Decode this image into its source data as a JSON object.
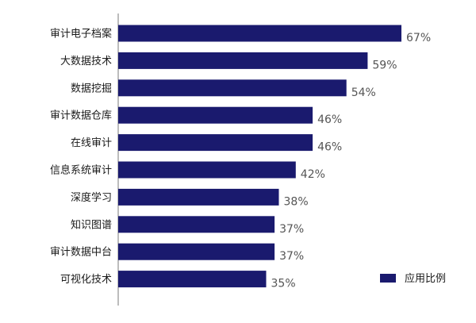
{
  "chart_data": {
    "type": "bar",
    "orientation": "horizontal",
    "categories": [
      "审计电子档案",
      "大数据技术",
      "数据挖掘",
      "审计数据仓库",
      "在线审计",
      "信息系统审计",
      "深度学习",
      "知识图谱",
      "审计数据中台",
      "可视化技术"
    ],
    "series": [
      {
        "name": "应用比例",
        "values": [
          67,
          59,
          54,
          46,
          46,
          42,
          38,
          37,
          37,
          35
        ],
        "value_labels": [
          "67%",
          "59%",
          "54%",
          "46%",
          "46%",
          "42%",
          "38%",
          "37%",
          "37%",
          "35%"
        ],
        "color": "#1a1a6e"
      }
    ],
    "title": "",
    "xlabel": "",
    "ylabel": "",
    "xlim": [
      0,
      67
    ],
    "grid": false,
    "legend": "bottom-right"
  },
  "legend": {
    "label": "应用比例",
    "color": "#1a1a6e"
  }
}
